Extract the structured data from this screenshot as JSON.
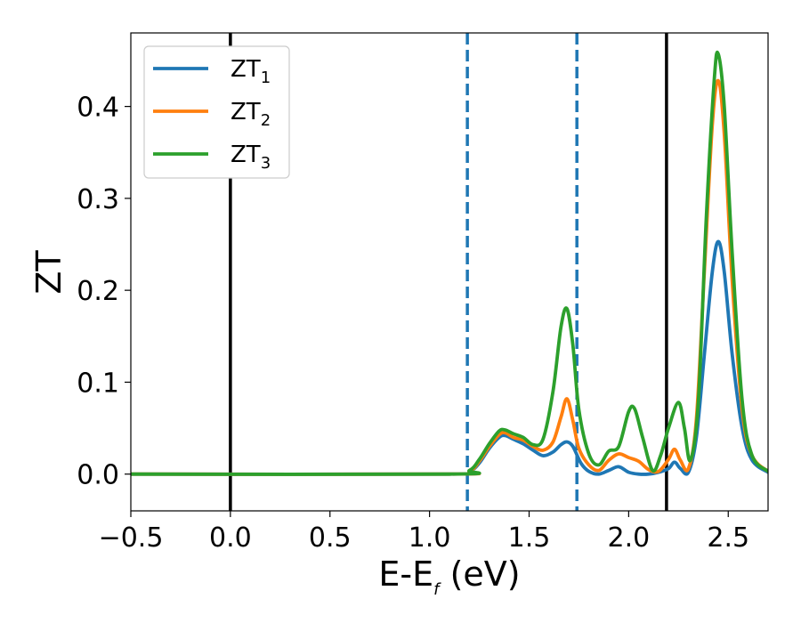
{
  "chart_data": {
    "type": "line",
    "xlabel": {
      "main": "E-E",
      "sub": "f",
      "tail": " (eV)"
    },
    "ylabel": "ZT",
    "xlim": [
      -0.5,
      2.7
    ],
    "ylim": [
      -0.04,
      0.48
    ],
    "xticks": [
      -0.5,
      0.0,
      0.5,
      1.0,
      1.5,
      2.0,
      2.5
    ],
    "xtick_labels": [
      "−0.5",
      "0.0",
      "0.5",
      "1.0",
      "1.5",
      "2.0",
      "2.5"
    ],
    "yticks": [
      0.0,
      0.1,
      0.2,
      0.3,
      0.4
    ],
    "ytick_labels": [
      "0.0",
      "0.1",
      "0.2",
      "0.3",
      "0.4"
    ],
    "grid": false,
    "legend": {
      "placement": "top-left"
    },
    "vlines": [
      {
        "x": 0.0,
        "color": "#000000",
        "style": "solid"
      },
      {
        "x": 1.19,
        "color": "#1f77b4",
        "style": "dashed"
      },
      {
        "x": 1.74,
        "color": "#1f77b4",
        "style": "dashed"
      },
      {
        "x": 2.19,
        "color": "#000000",
        "style": "solid"
      }
    ],
    "series": [
      {
        "name": "ZT",
        "name_sub": "1",
        "color": "#1f77b4",
        "points": [
          [
            -0.5,
            0
          ],
          [
            1.1,
            0
          ],
          [
            1.2,
            0.003
          ],
          [
            1.25,
            0.012
          ],
          [
            1.3,
            0.028
          ],
          [
            1.35,
            0.04
          ],
          [
            1.38,
            0.042
          ],
          [
            1.42,
            0.038
          ],
          [
            1.47,
            0.033
          ],
          [
            1.52,
            0.026
          ],
          [
            1.57,
            0.02
          ],
          [
            1.62,
            0.024
          ],
          [
            1.66,
            0.032
          ],
          [
            1.69,
            0.035
          ],
          [
            1.72,
            0.03
          ],
          [
            1.76,
            0.012
          ],
          [
            1.8,
            0.003
          ],
          [
            1.85,
            0
          ],
          [
            1.9,
            0.004
          ],
          [
            1.95,
            0.008
          ],
          [
            2.0,
            0.002
          ],
          [
            2.05,
            0
          ],
          [
            2.1,
            0
          ],
          [
            2.15,
            0.002
          ],
          [
            2.2,
            0.006
          ],
          [
            2.23,
            0.013
          ],
          [
            2.26,
            0.006
          ],
          [
            2.3,
            0.002
          ],
          [
            2.34,
            0.04
          ],
          [
            2.38,
            0.13
          ],
          [
            2.42,
            0.22
          ],
          [
            2.45,
            0.253
          ],
          [
            2.48,
            0.22
          ],
          [
            2.52,
            0.13
          ],
          [
            2.57,
            0.05
          ],
          [
            2.62,
            0.015
          ],
          [
            2.7,
            0.002
          ]
        ]
      },
      {
        "name": "ZT",
        "name_sub": "2",
        "color": "#ff7f0e",
        "points": [
          [
            -0.5,
            0
          ],
          [
            1.1,
            0
          ],
          [
            1.2,
            0.003
          ],
          [
            1.25,
            0.014
          ],
          [
            1.3,
            0.03
          ],
          [
            1.35,
            0.043
          ],
          [
            1.38,
            0.045
          ],
          [
            1.42,
            0.04
          ],
          [
            1.47,
            0.037
          ],
          [
            1.52,
            0.03
          ],
          [
            1.57,
            0.026
          ],
          [
            1.62,
            0.035
          ],
          [
            1.66,
            0.062
          ],
          [
            1.69,
            0.082
          ],
          [
            1.72,
            0.058
          ],
          [
            1.75,
            0.028
          ],
          [
            1.8,
            0.01
          ],
          [
            1.85,
            0.004
          ],
          [
            1.9,
            0.015
          ],
          [
            1.95,
            0.022
          ],
          [
            2.0,
            0.018
          ],
          [
            2.05,
            0.014
          ],
          [
            2.1,
            0.005
          ],
          [
            2.15,
            0.003
          ],
          [
            2.2,
            0.016
          ],
          [
            2.23,
            0.027
          ],
          [
            2.26,
            0.015
          ],
          [
            2.3,
            0.006
          ],
          [
            2.34,
            0.06
          ],
          [
            2.38,
            0.22
          ],
          [
            2.42,
            0.38
          ],
          [
            2.45,
            0.428
          ],
          [
            2.48,
            0.37
          ],
          [
            2.52,
            0.21
          ],
          [
            2.57,
            0.07
          ],
          [
            2.62,
            0.02
          ],
          [
            2.7,
            0.003
          ]
        ]
      },
      {
        "name": "ZT",
        "name_sub": "3",
        "color": "#2ca02c",
        "points": [
          [
            -0.5,
            0
          ],
          [
            1.1,
            0
          ],
          [
            1.2,
            0.004
          ],
          [
            1.25,
            0.016
          ],
          [
            1.3,
            0.033
          ],
          [
            1.35,
            0.047
          ],
          [
            1.38,
            0.048
          ],
          [
            1.42,
            0.044
          ],
          [
            1.47,
            0.04
          ],
          [
            1.52,
            0.032
          ],
          [
            1.57,
            0.038
          ],
          [
            1.62,
            0.09
          ],
          [
            1.66,
            0.16
          ],
          [
            1.69,
            0.18
          ],
          [
            1.72,
            0.14
          ],
          [
            1.75,
            0.07
          ],
          [
            1.8,
            0.022
          ],
          [
            1.85,
            0.01
          ],
          [
            1.9,
            0.025
          ],
          [
            1.95,
            0.03
          ],
          [
            2.0,
            0.068
          ],
          [
            2.03,
            0.071
          ],
          [
            2.07,
            0.04
          ],
          [
            2.12,
            0.004
          ],
          [
            2.16,
            0.02
          ],
          [
            2.2,
            0.05
          ],
          [
            2.25,
            0.078
          ],
          [
            2.28,
            0.05
          ],
          [
            2.31,
            0.015
          ],
          [
            2.35,
            0.08
          ],
          [
            2.39,
            0.28
          ],
          [
            2.43,
            0.43
          ],
          [
            2.45,
            0.457
          ],
          [
            2.48,
            0.4
          ],
          [
            2.52,
            0.24
          ],
          [
            2.57,
            0.08
          ],
          [
            2.62,
            0.02
          ],
          [
            2.7,
            0.003
          ]
        ]
      }
    ]
  }
}
